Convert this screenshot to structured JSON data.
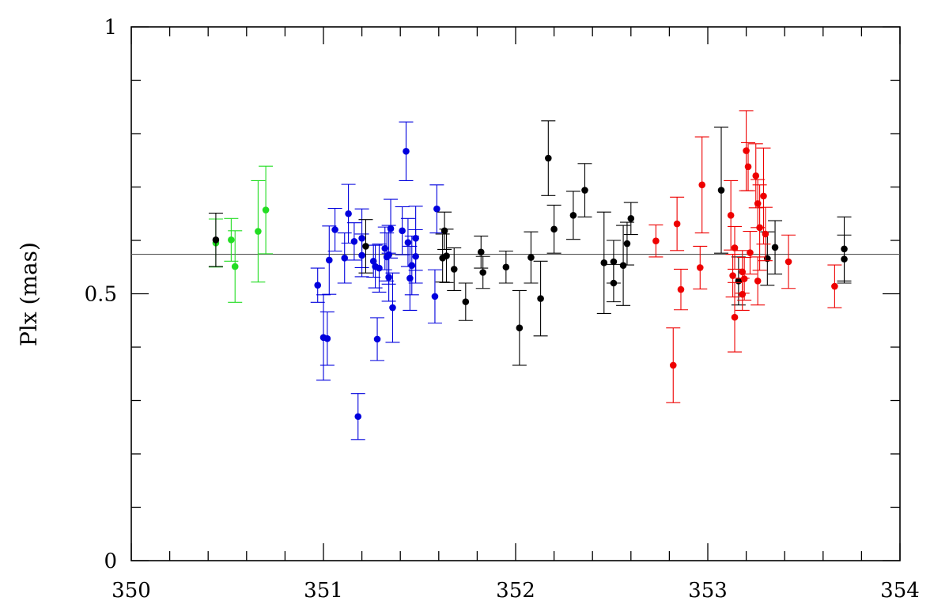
{
  "chart_data": {
    "type": "scatter",
    "title": "",
    "xlabel": "",
    "ylabel": "Plx (mas)",
    "xlim": [
      350,
      354
    ],
    "ylim": [
      0,
      1
    ],
    "x_ticks": [
      350,
      351,
      352,
      353,
      354
    ],
    "x_tick_labels": [
      "350",
      "351",
      "352",
      "353",
      "354"
    ],
    "y_ticks": [
      0,
      0.5,
      1
    ],
    "y_tick_labels": [
      "0",
      "0.5",
      "1"
    ],
    "grid": false,
    "reference_line": {
      "y": 0.574
    },
    "colors": {
      "black": "#000000",
      "green": "#22dd22",
      "blue": "#0000dd",
      "red": "#ee0000",
      "reference": "#555555"
    },
    "series": [
      {
        "color": "green",
        "points": [
          {
            "x": 350.44,
            "y": 0.595,
            "err": 0.045
          },
          {
            "x": 350.52,
            "y": 0.601,
            "err": 0.04
          },
          {
            "x": 350.54,
            "y": 0.551,
            "err": 0.067
          },
          {
            "x": 350.66,
            "y": 0.617,
            "err": 0.095
          },
          {
            "x": 350.7,
            "y": 0.657,
            "err": 0.082
          }
        ]
      },
      {
        "color": "blue",
        "points": [
          {
            "x": 350.97,
            "y": 0.516,
            "err": 0.032
          },
          {
            "x": 351.0,
            "y": 0.418,
            "err": 0.08
          },
          {
            "x": 351.02,
            "y": 0.416,
            "err": 0.05
          },
          {
            "x": 351.03,
            "y": 0.563,
            "err": 0.064
          },
          {
            "x": 351.06,
            "y": 0.62,
            "err": 0.04
          },
          {
            "x": 351.11,
            "y": 0.567,
            "err": 0.047
          },
          {
            "x": 351.13,
            "y": 0.65,
            "err": 0.055
          },
          {
            "x": 351.16,
            "y": 0.598,
            "err": 0.035
          },
          {
            "x": 351.18,
            "y": 0.27,
            "err": 0.043
          },
          {
            "x": 351.2,
            "y": 0.604,
            "err": 0.055
          },
          {
            "x": 351.2,
            "y": 0.572,
            "err": 0.04
          },
          {
            "x": 351.26,
            "y": 0.561,
            "err": 0.03
          },
          {
            "x": 351.27,
            "y": 0.551,
            "err": 0.04
          },
          {
            "x": 351.28,
            "y": 0.415,
            "err": 0.04
          },
          {
            "x": 351.29,
            "y": 0.548,
            "err": 0.045
          },
          {
            "x": 351.32,
            "y": 0.585,
            "err": 0.04
          },
          {
            "x": 351.33,
            "y": 0.569,
            "err": 0.045
          },
          {
            "x": 351.34,
            "y": 0.573,
            "err": 0.055
          },
          {
            "x": 351.34,
            "y": 0.531,
            "err": 0.045
          },
          {
            "x": 351.35,
            "y": 0.622,
            "err": 0.055
          },
          {
            "x": 351.36,
            "y": 0.474,
            "err": 0.065
          },
          {
            "x": 351.41,
            "y": 0.618,
            "err": 0.045
          },
          {
            "x": 351.43,
            "y": 0.767,
            "err": 0.055
          },
          {
            "x": 351.44,
            "y": 0.596,
            "err": 0.045
          },
          {
            "x": 351.45,
            "y": 0.529,
            "err": 0.06
          },
          {
            "x": 351.46,
            "y": 0.553,
            "err": 0.055
          },
          {
            "x": 351.48,
            "y": 0.57,
            "err": 0.05
          },
          {
            "x": 351.48,
            "y": 0.604,
            "err": 0.06
          },
          {
            "x": 351.58,
            "y": 0.495,
            "err": 0.05
          },
          {
            "x": 351.59,
            "y": 0.659,
            "err": 0.045
          }
        ]
      },
      {
        "color": "black",
        "points": [
          {
            "x": 350.44,
            "y": 0.601,
            "err": 0.05
          },
          {
            "x": 351.22,
            "y": 0.589,
            "err": 0.05
          },
          {
            "x": 351.62,
            "y": 0.567,
            "err": 0.045
          },
          {
            "x": 351.63,
            "y": 0.618,
            "err": 0.035
          },
          {
            "x": 351.64,
            "y": 0.571,
            "err": 0.05
          },
          {
            "x": 351.68,
            "y": 0.546,
            "err": 0.04
          },
          {
            "x": 351.74,
            "y": 0.485,
            "err": 0.035
          },
          {
            "x": 351.82,
            "y": 0.578,
            "err": 0.03
          },
          {
            "x": 351.83,
            "y": 0.54,
            "err": 0.03
          },
          {
            "x": 351.95,
            "y": 0.55,
            "err": 0.03
          },
          {
            "x": 352.02,
            "y": 0.436,
            "err": 0.07
          },
          {
            "x": 352.08,
            "y": 0.568,
            "err": 0.048
          },
          {
            "x": 352.13,
            "y": 0.491,
            "err": 0.07
          },
          {
            "x": 352.17,
            "y": 0.754,
            "err": 0.07
          },
          {
            "x": 352.2,
            "y": 0.621,
            "err": 0.045
          },
          {
            "x": 352.3,
            "y": 0.647,
            "err": 0.045
          },
          {
            "x": 352.36,
            "y": 0.694,
            "err": 0.05
          },
          {
            "x": 352.46,
            "y": 0.558,
            "err": 0.095
          },
          {
            "x": 352.51,
            "y": 0.56,
            "err": 0.04
          },
          {
            "x": 352.51,
            "y": 0.52,
            "err": 0.035
          },
          {
            "x": 352.56,
            "y": 0.553,
            "err": 0.075
          },
          {
            "x": 352.58,
            "y": 0.594,
            "err": 0.04
          },
          {
            "x": 352.6,
            "y": 0.641,
            "err": 0.03
          },
          {
            "x": 353.07,
            "y": 0.694,
            "err": 0.118
          },
          {
            "x": 353.16,
            "y": 0.524,
            "err": 0.045
          },
          {
            "x": 353.31,
            "y": 0.566,
            "err": 0.05
          },
          {
            "x": 353.35,
            "y": 0.587,
            "err": 0.05
          },
          {
            "x": 353.71,
            "y": 0.565,
            "err": 0.045
          },
          {
            "x": 353.71,
            "y": 0.584,
            "err": 0.06
          }
        ]
      },
      {
        "color": "red",
        "points": [
          {
            "x": 352.73,
            "y": 0.599,
            "err": 0.03
          },
          {
            "x": 352.82,
            "y": 0.366,
            "err": 0.07
          },
          {
            "x": 352.84,
            "y": 0.631,
            "err": 0.05
          },
          {
            "x": 352.86,
            "y": 0.508,
            "err": 0.038
          },
          {
            "x": 352.96,
            "y": 0.549,
            "err": 0.04
          },
          {
            "x": 352.97,
            "y": 0.704,
            "err": 0.09
          },
          {
            "x": 353.12,
            "y": 0.647,
            "err": 0.065
          },
          {
            "x": 353.13,
            "y": 0.534,
            "err": 0.04
          },
          {
            "x": 353.14,
            "y": 0.456,
            "err": 0.065
          },
          {
            "x": 353.14,
            "y": 0.586,
            "err": 0.04
          },
          {
            "x": 353.18,
            "y": 0.541,
            "err": 0.04
          },
          {
            "x": 353.18,
            "y": 0.499,
            "err": 0.03
          },
          {
            "x": 353.19,
            "y": 0.528,
            "err": 0.04
          },
          {
            "x": 353.2,
            "y": 0.768,
            "err": 0.075
          },
          {
            "x": 353.21,
            "y": 0.738,
            "err": 0.045
          },
          {
            "x": 353.22,
            "y": 0.577,
            "err": 0.04
          },
          {
            "x": 353.25,
            "y": 0.721,
            "err": 0.06
          },
          {
            "x": 353.26,
            "y": 0.669,
            "err": 0.045
          },
          {
            "x": 353.26,
            "y": 0.524,
            "err": 0.045
          },
          {
            "x": 353.27,
            "y": 0.624,
            "err": 0.08
          },
          {
            "x": 353.29,
            "y": 0.683,
            "err": 0.09
          },
          {
            "x": 353.3,
            "y": 0.612,
            "err": 0.05
          },
          {
            "x": 353.42,
            "y": 0.56,
            "err": 0.05
          },
          {
            "x": 353.66,
            "y": 0.514,
            "err": 0.04
          }
        ]
      }
    ]
  }
}
